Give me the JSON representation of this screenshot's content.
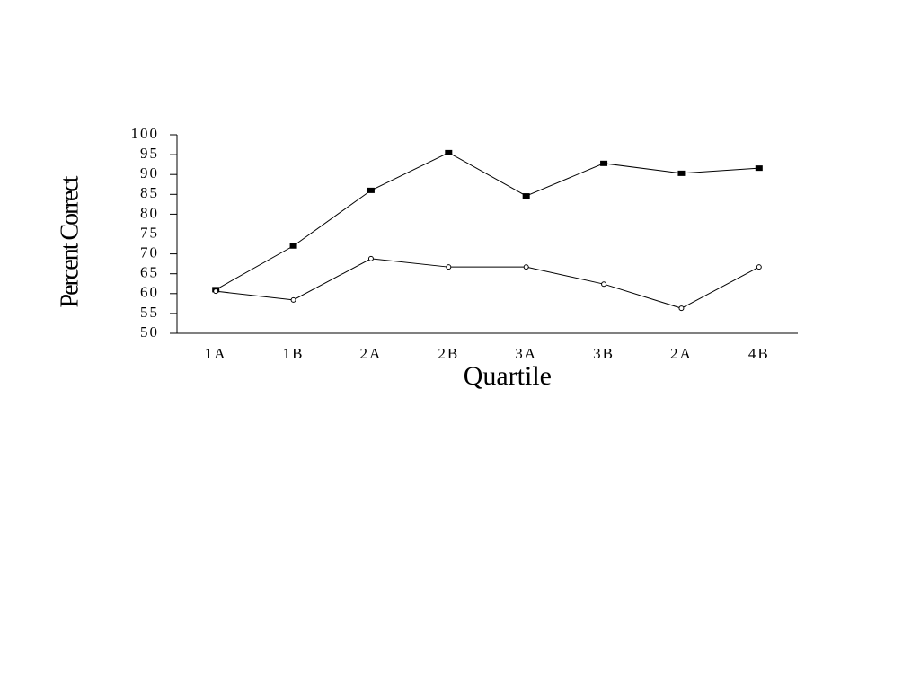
{
  "chart_data": {
    "type": "line",
    "x_label": "Quartile",
    "y_label": "Percent Correct",
    "categories": [
      "1A",
      "1B",
      "2A",
      "2B",
      "3A",
      "3B",
      "2A",
      "4B"
    ],
    "series": [
      {
        "color": "#000000",
        "marker": "square",
        "values": [
          61,
          72,
          86,
          95.5,
          84.6,
          92.8,
          90.3,
          91.6
        ]
      },
      {
        "color": "#000000",
        "marker": "circle",
        "values": [
          60.6,
          58.4,
          68.8,
          66.7,
          66.7,
          62.4,
          56.3,
          66.7
        ]
      }
    ],
    "ylim": [
      50,
      100
    ],
    "yticks": [
      50,
      55,
      60,
      65,
      70,
      75,
      80,
      85,
      90,
      95,
      100
    ],
    "grid": false
  }
}
